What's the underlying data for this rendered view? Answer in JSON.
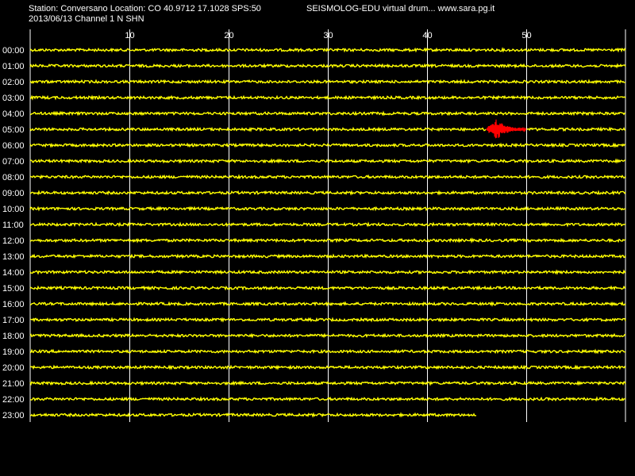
{
  "header": {
    "station_line": "Station: Conversano Location: CO 40.9712 17.1028 SPS:50",
    "date_line": "2013/06/13  Channel 1 N SHN",
    "app_line": "SEISMOLOG-EDU virtual drum... www.sara.pg.it"
  },
  "colors": {
    "background": "#000000",
    "trace": "#ffff00",
    "event": "#ff0000",
    "grid": "#ffffff",
    "text": "#ffffff"
  },
  "chart_data": {
    "type": "line",
    "title": "",
    "xlabel": "",
    "ylabel": "",
    "xlim": [
      0,
      60
    ],
    "x_ticks": [
      10,
      20,
      30,
      40,
      50
    ],
    "grid": "vertical lines at x ticks",
    "hour_labels": [
      "00:00",
      "01:00",
      "02:00",
      "03:00",
      "04:00",
      "05:00",
      "06:00",
      "07:00",
      "08:00",
      "09:00",
      "10:00",
      "11:00",
      "12:00",
      "13:00",
      "14:00",
      "15:00",
      "16:00",
      "17:00",
      "18:00",
      "19:00",
      "20:00",
      "21:00",
      "22:00",
      "23:00"
    ],
    "trace_end_minute_by_hour": [
      60,
      60,
      60,
      60,
      60,
      60,
      60,
      60,
      60,
      60,
      60,
      60,
      60,
      60,
      60,
      60,
      60,
      60,
      60,
      60,
      60,
      60,
      60,
      45
    ],
    "event": {
      "hour": "05:00",
      "start_minute": 46,
      "peak_minute": 47,
      "end_minute": 50
    }
  }
}
